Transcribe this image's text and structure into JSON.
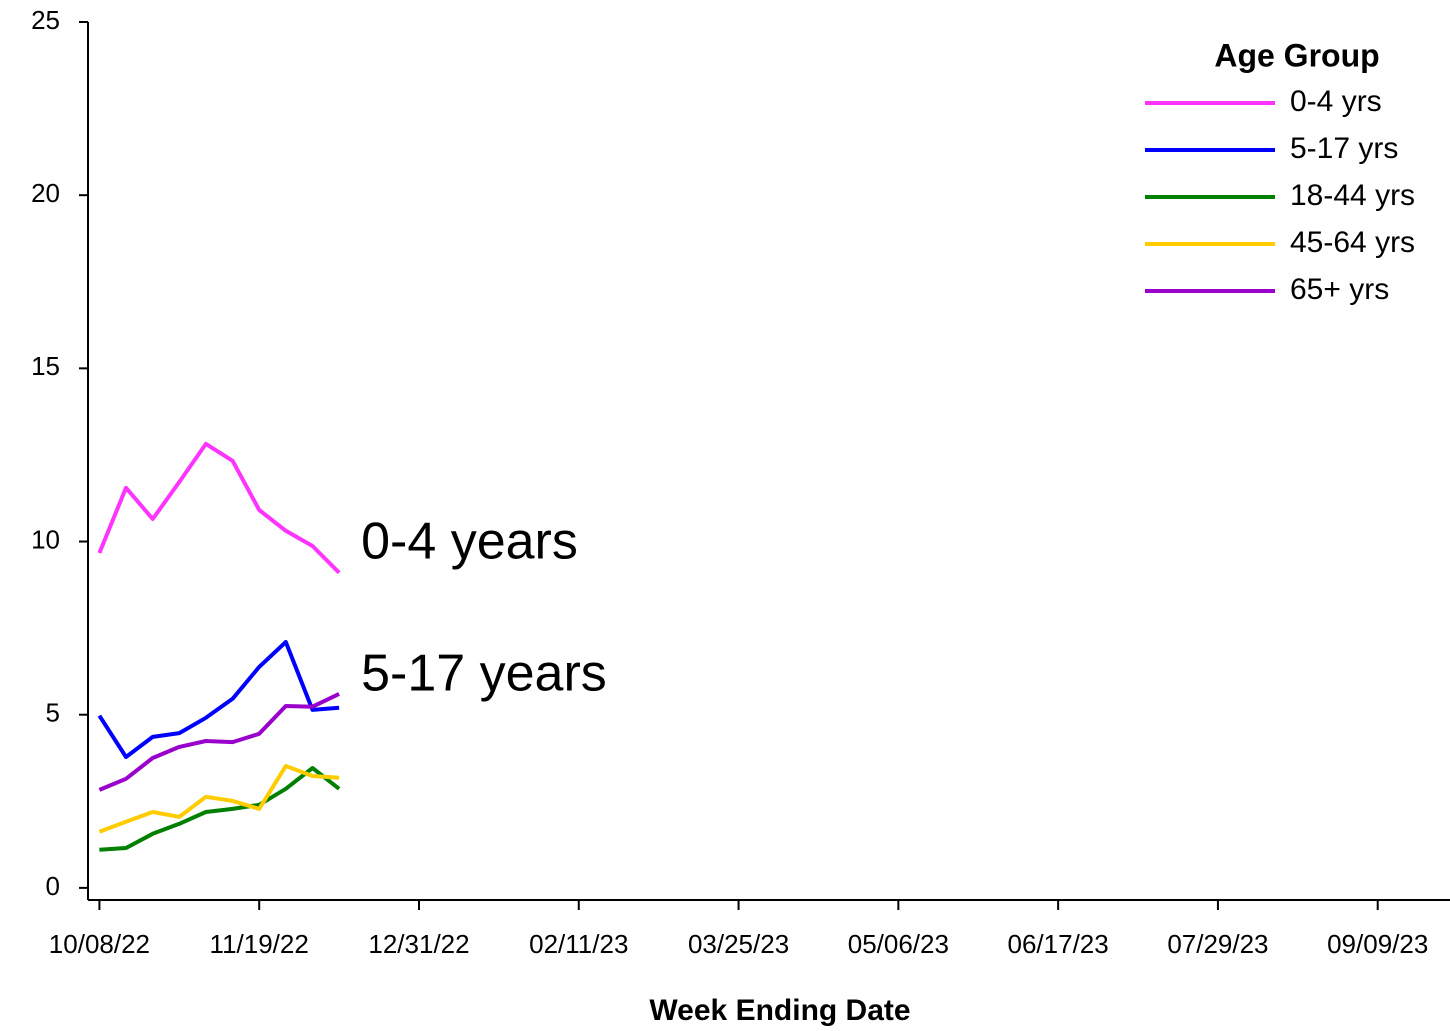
{
  "chart_data": {
    "type": "line",
    "x_label": "Week Ending Date",
    "legend_title": "Age Group",
    "legend": "top-right",
    "x": [
      "10/08/22",
      "10/15/22",
      "10/22/22",
      "10/29/22",
      "11/05/22",
      "11/12/22",
      "11/19/22",
      "11/26/22",
      "12/03/22",
      "12/10/22"
    ],
    "series": [
      {
        "name": "0-4 yrs",
        "color": "#ff33ff",
        "values": [
          9.67,
          11.55,
          10.65,
          11.72,
          12.82,
          12.33,
          10.91,
          10.31,
          9.87,
          9.1
        ]
      },
      {
        "name": "5-17 yrs",
        "color": "#0000ff",
        "values": [
          4.97,
          3.78,
          4.36,
          4.47,
          4.91,
          5.46,
          6.38,
          7.1,
          5.14,
          5.2
        ]
      },
      {
        "name": "18-44 yrs",
        "color": "#008000",
        "values": [
          1.1,
          1.15,
          1.56,
          1.85,
          2.19,
          2.28,
          2.4,
          2.86,
          3.46,
          2.86
        ]
      },
      {
        "name": "45-64 yrs",
        "color": "#ffcc00",
        "values": [
          1.62,
          1.91,
          2.19,
          2.05,
          2.63,
          2.51,
          2.28,
          3.52,
          3.23,
          3.18
        ]
      },
      {
        "name": "65+ yrs",
        "color": "#9900cc",
        "values": [
          2.83,
          3.15,
          3.75,
          4.07,
          4.24,
          4.21,
          4.45,
          5.25,
          5.23,
          5.6
        ]
      }
    ],
    "annotations": [
      {
        "text": "0-4 years",
        "color": "#ff33ff"
      },
      {
        "text": "5-17 years",
        "color": "#0000ff"
      }
    ],
    "xlim": [
      "10/05/22",
      "09/28/23"
    ],
    "xticks": [
      "10/08/22",
      "11/19/22",
      "12/31/22",
      "02/11/23",
      "03/25/23",
      "05/06/23",
      "06/17/23",
      "07/29/23",
      "09/09/23"
    ],
    "ylim": [
      -0.35,
      25
    ],
    "yticks": [
      0,
      5,
      10,
      15,
      20,
      25
    ]
  }
}
